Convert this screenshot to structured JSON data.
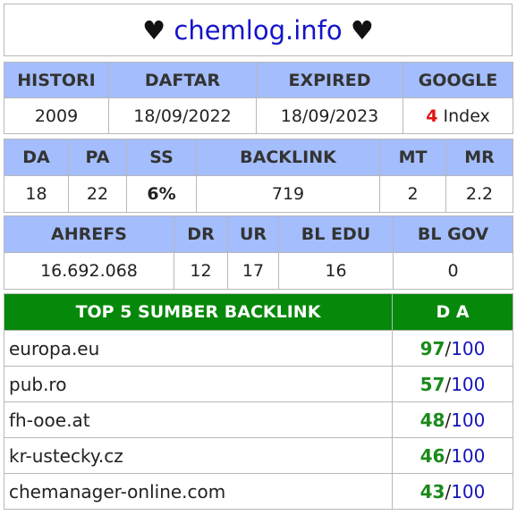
{
  "title": {
    "heart": "♥",
    "site": "chemlog.info"
  },
  "info": {
    "headers": [
      "HISTORI",
      "DAFTAR",
      "EXPIRED",
      "GOOGLE"
    ],
    "histori": "2009",
    "daftar": "18/09/2022",
    "expired": "18/09/2023",
    "google_count": "4",
    "google_label": "Index"
  },
  "metrics": {
    "headers": [
      "DA",
      "PA",
      "SS",
      "BACKLINK",
      "MT",
      "MR"
    ],
    "da": "18",
    "pa": "22",
    "ss": "6%",
    "backlink": "719",
    "mt": "2",
    "mr": "2.2"
  },
  "ahrefs": {
    "headers": [
      "AHREFS",
      "DR",
      "UR",
      "BL EDU",
      "BL GOV"
    ],
    "ahrefs": "16.692.068",
    "dr": "12",
    "ur": "17",
    "bl_edu": "16",
    "bl_gov": "0"
  },
  "top_backlinks": {
    "header": "TOP 5 SUMBER BACKLINK",
    "da_header": "D A",
    "separator": "/",
    "max": "100",
    "rows": [
      {
        "domain": "europa.eu",
        "da": "97"
      },
      {
        "domain": "pub.ro",
        "da": "57"
      },
      {
        "domain": "fh-ooe.at",
        "da": "48"
      },
      {
        "domain": "kr-ustecky.cz",
        "da": "46"
      },
      {
        "domain": "chemanager-online.com",
        "da": "43"
      }
    ]
  },
  "colors": {
    "header_bg": "#a4bdfc",
    "green_header_bg": "#06880a",
    "site_blue": "#1414c8",
    "value_green": "#1a8a1a",
    "index_red": "#e01414"
  }
}
